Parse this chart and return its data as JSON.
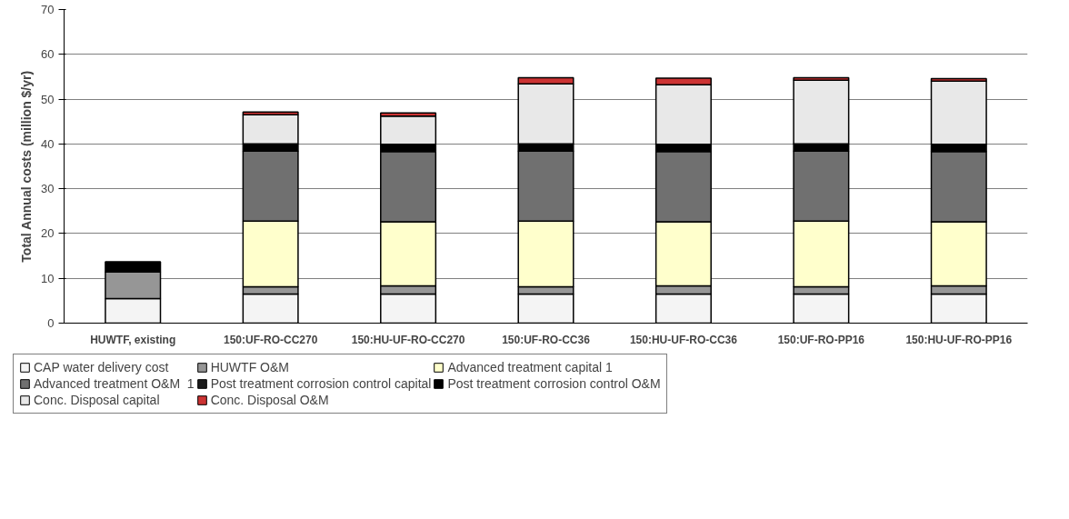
{
  "chart_data": {
    "type": "bar",
    "stacked": true,
    "ylabel": "Total Annual costs (million $/yr)",
    "categories": [
      "HUWTF, existing",
      "150:UF-RO-CC270",
      "150:HU-UF-RO-CC270",
      "150:UF-RO-CC36",
      "150:HU-UF-RO-CC36",
      "150:UF-RO-PP16",
      "150:HU-UF-RO-PP16"
    ],
    "series": [
      {
        "name": "CAP water delivery cost",
        "color": "#f4f4f4",
        "values": [
          5.5,
          6.5,
          6.5,
          6.5,
          6.5,
          6.5,
          6.5
        ]
      },
      {
        "name": "HUWTF O&M",
        "color": "#969696",
        "values": [
          5.9,
          1.6,
          1.8,
          1.6,
          1.8,
          1.6,
          1.8
        ]
      },
      {
        "name": "Advanced treatment capital 1",
        "color": "#ffffcc",
        "values": [
          null,
          14.7,
          14.3,
          14.7,
          14.3,
          14.7,
          14.3
        ]
      },
      {
        "name": "Advanced treatment O&M  1",
        "color": "#707070",
        "values": [
          null,
          15.6,
          15.7,
          15.6,
          15.7,
          15.6,
          15.7
        ]
      },
      {
        "name": "Post treatment corrosion control capital",
        "color": "#1a1a1a",
        "values": [
          null,
          null,
          null,
          null,
          null,
          null,
          null
        ]
      },
      {
        "name": "Post treatment corrosion control O&M",
        "color": "#000000",
        "values": [
          2.3,
          1.6,
          1.6,
          1.6,
          1.6,
          1.6,
          1.6
        ]
      },
      {
        "name": "Conc. Disposal capital",
        "color": "#e8e8e8",
        "values": [
          null,
          6.5,
          6.3,
          13.4,
          13.3,
          14.2,
          14.1
        ]
      },
      {
        "name": "Conc. Disposal O&M",
        "color": "#cc3333",
        "values": [
          null,
          0.6,
          0.7,
          1.4,
          1.5,
          0.6,
          0.6
        ]
      }
    ],
    "ylim": [
      0,
      70
    ],
    "yticks": [
      0,
      10,
      20,
      30,
      40,
      50,
      60,
      70
    ],
    "grid": "y",
    "legend": "bottom"
  }
}
